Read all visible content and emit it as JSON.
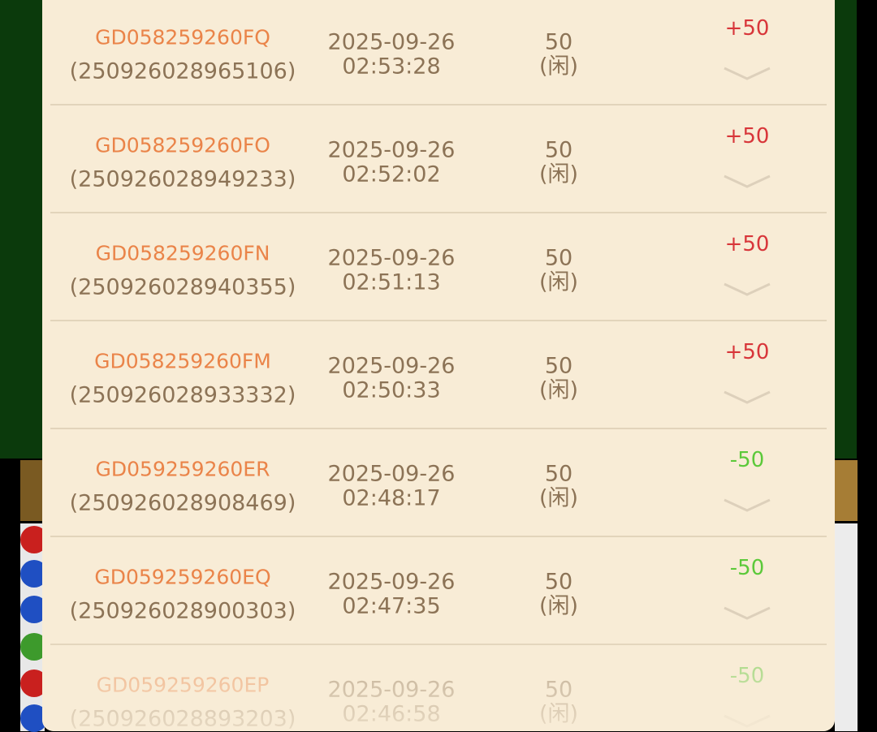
{
  "rows": [
    {
      "id": "GD058259260FQ",
      "order": "(250926028965106)",
      "date": "2025-09-26",
      "time": "02:53:28",
      "amount": "50",
      "side": "(闲)",
      "result": "+50",
      "color": "#d8363a"
    },
    {
      "id": "GD058259260FO",
      "order": "(250926028949233)",
      "date": "2025-09-26",
      "time": "02:52:02",
      "amount": "50",
      "side": "(闲)",
      "result": "+50",
      "color": "#d8363a"
    },
    {
      "id": "GD058259260FN",
      "order": "(250926028940355)",
      "date": "2025-09-26",
      "time": "02:51:13",
      "amount": "50",
      "side": "(闲)",
      "result": "+50",
      "color": "#d8363a"
    },
    {
      "id": "GD058259260FM",
      "order": "(250926028933332)",
      "date": "2025-09-26",
      "time": "02:50:33",
      "amount": "50",
      "side": "(闲)",
      "result": "+50",
      "color": "#d8363a"
    },
    {
      "id": "GD059259260ER",
      "order": "(250926028908469)",
      "date": "2025-09-26",
      "time": "02:48:17",
      "amount": "50",
      "side": "(闲)",
      "result": "-50",
      "color": "#5cc93a"
    },
    {
      "id": "GD059259260EQ",
      "order": "(250926028900303)",
      "date": "2025-09-26",
      "time": "02:47:35",
      "amount": "50",
      "side": "(闲)",
      "result": "-50",
      "color": "#5cc93a"
    },
    {
      "id": "GD059259260EP",
      "order": "(250926028893203)",
      "date": "2025-09-26",
      "time": "02:46:58",
      "amount": "50",
      "side": "(闲)",
      "result": "-50",
      "color": "#5cc93a"
    }
  ]
}
